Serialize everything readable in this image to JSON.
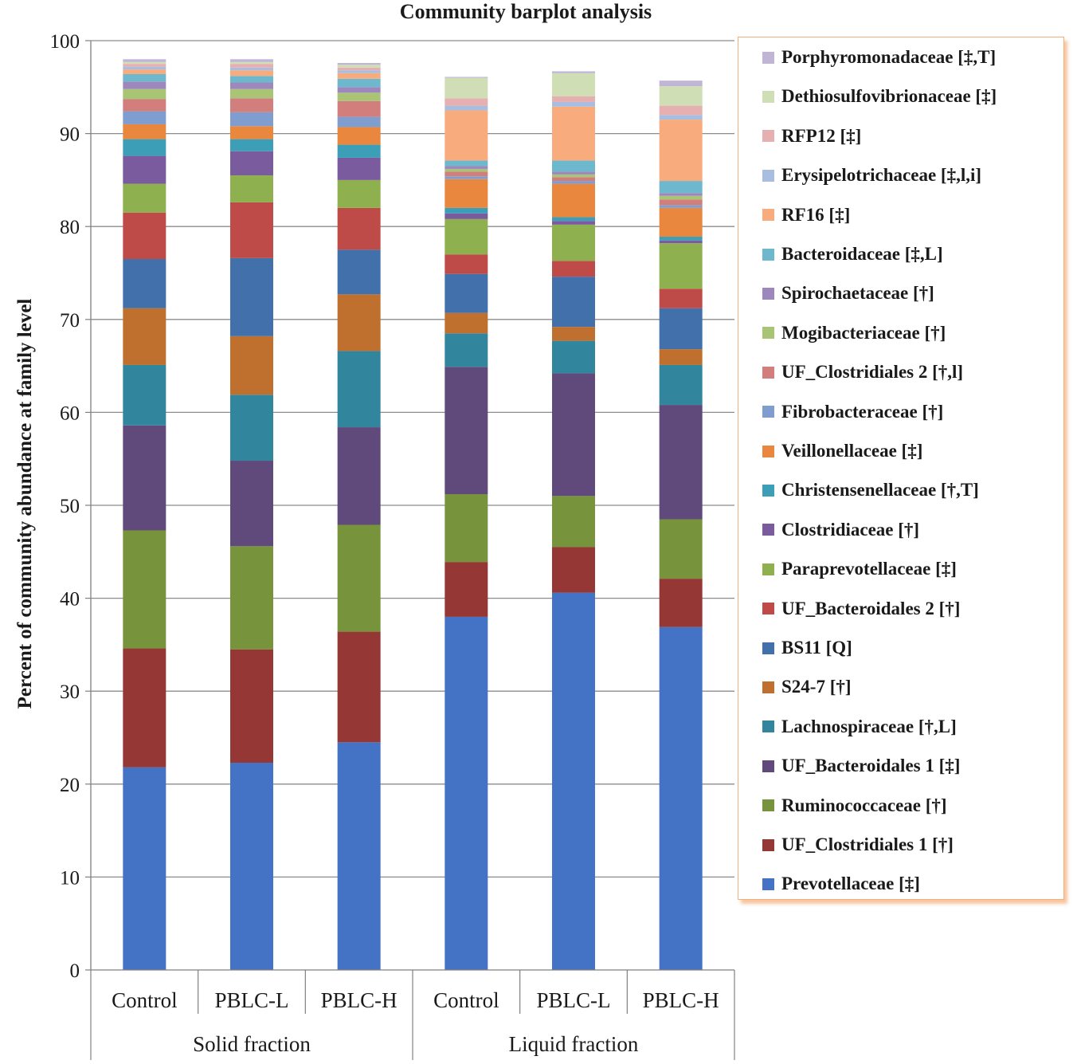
{
  "chart_data": {
    "type": "stacked-bar",
    "title": "Community barplot analysis",
    "ylabel": "Percent of community abundance at family level",
    "xlabel": "",
    "ylim": [
      0,
      100
    ],
    "yticks": [
      0,
      10,
      20,
      30,
      40,
      50,
      60,
      70,
      80,
      90,
      100
    ],
    "grid": true,
    "legend_position": "right",
    "categories": [
      "Control",
      "PBLC-L",
      "PBLC-H",
      "Control",
      "PBLC-L",
      "PBLC-H"
    ],
    "groups": [
      {
        "name": "Solid fraction",
        "category_indices": [
          0,
          1,
          2
        ]
      },
      {
        "name": "Liquid fraction",
        "category_indices": [
          3,
          4,
          5
        ]
      }
    ],
    "series": [
      {
        "name": "Prevotellaceae [‡]",
        "color": "#4472c4",
        "values": [
          21.8,
          22.3,
          24.5,
          38.0,
          40.6,
          36.9
        ]
      },
      {
        "name": "UF_Clostridiales 1 [†]",
        "color": "#953735",
        "values": [
          12.8,
          12.2,
          11.9,
          5.9,
          4.9,
          5.2
        ]
      },
      {
        "name": "Ruminococcaceae [†]",
        "color": "#77933c",
        "values": [
          12.7,
          11.1,
          11.5,
          7.3,
          5.5,
          6.4
        ]
      },
      {
        "name": "UF_Bacteroidales 1 [‡]",
        "color": "#604a7b",
        "values": [
          11.3,
          9.2,
          10.5,
          13.7,
          13.2,
          12.3
        ]
      },
      {
        "name": "Lachnospiraceae [†,L]",
        "color": "#31859c",
        "values": [
          6.5,
          7.1,
          8.2,
          3.6,
          3.5,
          4.3
        ]
      },
      {
        "name": "S24-7 [†]",
        "color": "#c0702e",
        "values": [
          6.1,
          6.3,
          6.1,
          2.2,
          1.5,
          1.7
        ]
      },
      {
        "name": "BS11 [Q]",
        "color": "#4170aa",
        "values": [
          5.3,
          8.4,
          4.8,
          4.2,
          5.4,
          4.4
        ]
      },
      {
        "name": "UF_Bacteroidales 2 [†]",
        "color": "#be4b48",
        "values": [
          5.0,
          6.0,
          4.5,
          2.1,
          1.7,
          2.1
        ]
      },
      {
        "name": "Paraprevotellaceae [‡]",
        "color": "#8fb04f",
        "values": [
          3.1,
          2.9,
          3.0,
          3.8,
          3.9,
          4.9
        ]
      },
      {
        "name": "Clostridiaceae [†]",
        "color": "#7a5c9e",
        "values": [
          3.0,
          2.6,
          2.4,
          0.6,
          0.4,
          0.3
        ]
      },
      {
        "name": "Christensenellaceae [†,T]",
        "color": "#3c9eb7",
        "values": [
          1.8,
          1.3,
          1.4,
          0.6,
          0.4,
          0.4
        ]
      },
      {
        "name": "Veillonellaceae [‡]",
        "color": "#e8873d",
        "values": [
          1.6,
          1.4,
          1.9,
          3.1,
          3.6,
          3.1
        ]
      },
      {
        "name": "Fibrobacteraceae [†]",
        "color": "#7f9dcf",
        "values": [
          1.4,
          1.5,
          1.1,
          0.3,
          0.3,
          0.3
        ]
      },
      {
        "name": "UF_Clostridiales 2 [†,l]",
        "color": "#d17e7c",
        "values": [
          1.3,
          1.5,
          1.7,
          0.5,
          0.4,
          0.6
        ]
      },
      {
        "name": "Mogibacteriaceae [†]",
        "color": "#a8c474",
        "values": [
          1.1,
          1.0,
          0.9,
          0.3,
          0.3,
          0.4
        ]
      },
      {
        "name": "Spirochaetaceae [†]",
        "color": "#9c88bd",
        "values": [
          0.8,
          0.7,
          0.6,
          0.3,
          0.3,
          0.3
        ]
      },
      {
        "name": "Bacteroidaceae [‡,L]",
        "color": "#6db8cd",
        "values": [
          0.8,
          0.7,
          0.9,
          0.6,
          1.2,
          1.3
        ]
      },
      {
        "name": "RF16 [‡]",
        "color": "#f8ab7c",
        "values": [
          0.5,
          0.6,
          0.6,
          5.4,
          5.8,
          6.6
        ]
      },
      {
        "name": "Erysipelotrichaceae [‡,l,i]",
        "color": "#a9bde0",
        "values": [
          0.3,
          0.3,
          0.3,
          0.5,
          0.5,
          0.5
        ]
      },
      {
        "name": "RFP12 [‡]",
        "color": "#e7b0b0",
        "values": [
          0.3,
          0.4,
          0.3,
          0.8,
          0.6,
          1.0
        ]
      },
      {
        "name": "Dethiosulfovibrionaceae [‡]",
        "color": "#cfdeb5",
        "values": [
          0.2,
          0.2,
          0.3,
          2.2,
          2.5,
          2.1
        ]
      },
      {
        "name": "Porphyromonadaceae [‡,T]",
        "color": "#c0b5d5",
        "values": [
          0.3,
          0.3,
          0.2,
          0.1,
          0.2,
          0.6
        ]
      }
    ]
  }
}
